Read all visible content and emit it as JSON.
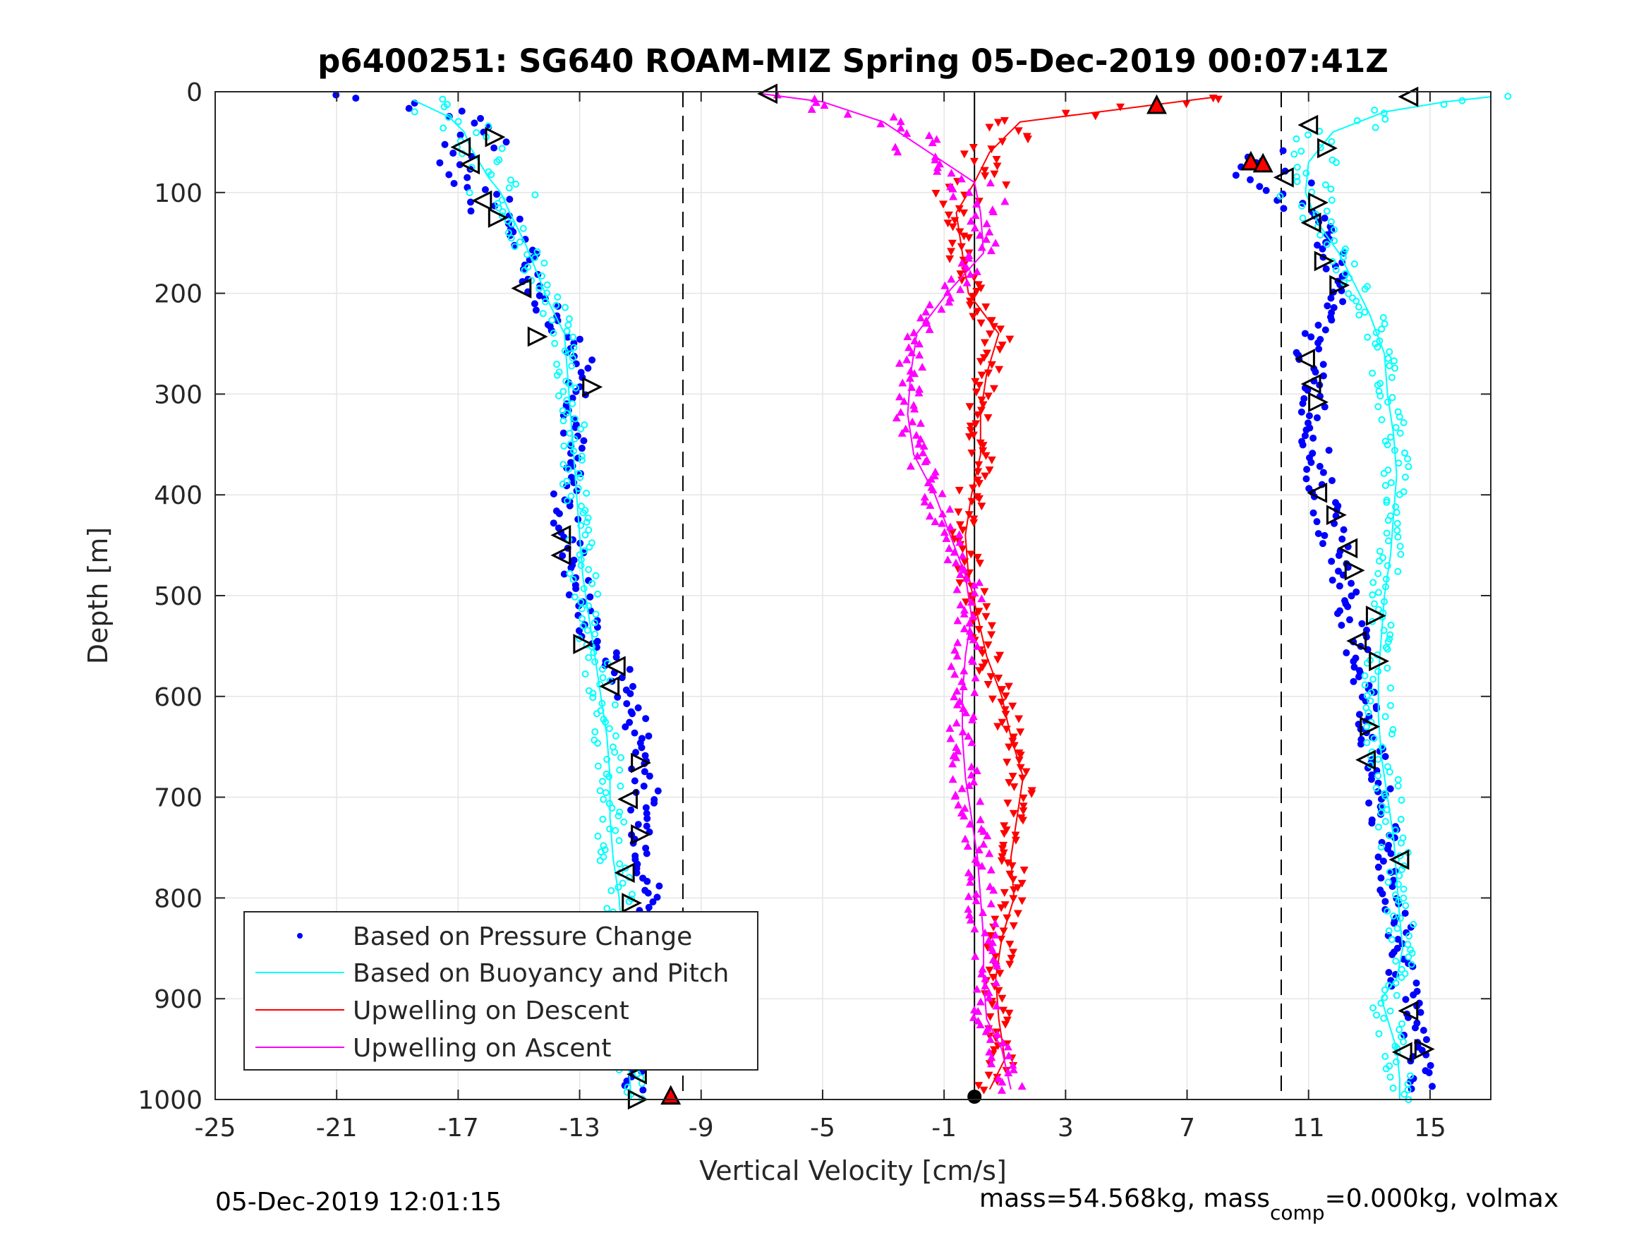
{
  "chart_data": {
    "type": "scatter",
    "title": "p6400251: SG640 ROAM-MIZ Spring 05-Dec-2019 00:07:41Z",
    "xlabel": "Vertical Velocity [cm/s]",
    "ylabel": "Depth [m]",
    "xlim": [
      -25,
      17
    ],
    "ylim": [
      0,
      1000
    ],
    "y_reversed": true,
    "grid": true,
    "xticks": [
      -25,
      -21,
      -17,
      -13,
      -9,
      -5,
      -1,
      3,
      7,
      11,
      15
    ],
    "yticks": [
      0,
      100,
      200,
      300,
      400,
      500,
      600,
      700,
      800,
      900,
      1000
    ],
    "xtick_labels": [
      "-25",
      "-21",
      "-17",
      "-13",
      "-9",
      "-5",
      "-1",
      "3",
      "7",
      "11",
      "15"
    ],
    "ytick_labels": [
      "0",
      "100",
      "200",
      "300",
      "400",
      "500",
      "600",
      "700",
      "800",
      "900",
      "1000"
    ],
    "reference_lines": [
      {
        "style": "dashed",
        "x": -9.6
      },
      {
        "style": "dashed",
        "x": 10.1
      },
      {
        "style": "solid",
        "x": 0
      }
    ],
    "legend": {
      "position": "bottom-left",
      "entries": [
        {
          "label": "Based on Pressure Change",
          "color": "#0000ff",
          "marker": "dot"
        },
        {
          "label": "Based on Buoyancy and Pitch",
          "color": "#00ffff",
          "marker": "line"
        },
        {
          "label": "Upwelling on Descent",
          "color": "#ff0000",
          "marker": "line"
        },
        {
          "label": "Upwelling on Ascent",
          "color": "#ff00ff",
          "marker": "line"
        }
      ]
    },
    "series": [
      {
        "role": "pressure_descent",
        "color": "#0000ff",
        "depth": [
          3,
          10,
          20,
          30,
          45,
          60,
          75,
          90,
          110,
          130,
          160,
          200,
          230,
          250,
          270,
          300,
          340,
          380,
          420,
          460,
          500,
          540,
          570,
          600,
          640,
          680,
          720,
          760,
          800,
          850,
          900,
          950,
          990
        ],
        "values": [
          -21,
          -18.5,
          -17,
          -16.5,
          -16.2,
          -17,
          -16.8,
          -16.2,
          -15.8,
          -15.3,
          -14.8,
          -14.3,
          -13.8,
          -13.2,
          -12.8,
          -13,
          -13.2,
          -13.4,
          -13.5,
          -13.2,
          -13,
          -12.6,
          -11.8,
          -11.4,
          -11.0,
          -10.8,
          -10.9,
          -10.8,
          -10.7,
          -10.6,
          -10.8,
          -11.0,
          -11.1
        ]
      },
      {
        "role": "buoyancy_descent",
        "color": "#00ffff",
        "depth": [
          8,
          15,
          25,
          40,
          55,
          70,
          85,
          100,
          120,
          150,
          180,
          210,
          240,
          280,
          320,
          360,
          400,
          440,
          480,
          520,
          560,
          600,
          640,
          680,
          720,
          760,
          800,
          840,
          880,
          920,
          960,
          1000
        ],
        "values": [
          -18.5,
          -18,
          -17.3,
          -16.8,
          -16.6,
          -16.3,
          -16.0,
          -15.6,
          -15.3,
          -14.8,
          -14.4,
          -14.0,
          -13.5,
          -13.4,
          -13.3,
          -13.2,
          -13.1,
          -13.0,
          -12.9,
          -12.7,
          -12.5,
          -12.3,
          -12.1,
          -12.0,
          -12.0,
          -11.9,
          -11.7,
          -11.6,
          -11.5,
          -11.5,
          -11.4,
          -11.3
        ]
      },
      {
        "role": "pressure_ascent",
        "color": "#0000ff",
        "depth": [
          990,
          950,
          900,
          860,
          820,
          780,
          740,
          700,
          660,
          620,
          580,
          540,
          500,
          460,
          420,
          380,
          340,
          300,
          260,
          220,
          190,
          160,
          130,
          100,
          80,
          70,
          60
        ],
        "values": [
          14.8,
          14.6,
          14.2,
          14.0,
          13.9,
          13.7,
          13.5,
          13.3,
          13.1,
          13.0,
          12.8,
          12.5,
          12.3,
          12.0,
          11.6,
          11.3,
          11.2,
          11.2,
          11.0,
          11.5,
          12.0,
          11.8,
          11.2,
          10.5,
          9.5,
          9.0,
          10.2
        ]
      },
      {
        "role": "buoyancy_ascent",
        "color": "#00ffff",
        "depth": [
          1000,
          980,
          950,
          920,
          900,
          880,
          850,
          820,
          780,
          740,
          700,
          660,
          620,
          580,
          540,
          500,
          460,
          420,
          380,
          340,
          300,
          260,
          220,
          190,
          160,
          130,
          100,
          70,
          40,
          20,
          10,
          5
        ],
        "values": [
          14.0,
          14.0,
          13.9,
          13.6,
          13.4,
          13.9,
          14.1,
          14.0,
          13.9,
          13.8,
          13.6,
          13.4,
          13.3,
          13.3,
          13.4,
          13.5,
          13.7,
          13.8,
          13.9,
          13.8,
          13.6,
          13.5,
          13.0,
          12.5,
          12.0,
          11.3,
          10.9,
          11.0,
          11.8,
          13.5,
          15.5,
          17
        ]
      },
      {
        "role": "upwelling_descent",
        "color": "#ff0000",
        "depth": [
          5,
          30,
          60,
          90,
          120,
          160,
          200,
          240,
          280,
          320,
          360,
          400,
          440,
          480,
          520,
          560,
          600,
          640,
          680,
          720,
          760,
          800,
          840,
          880,
          920,
          960,
          990
        ],
        "values": [
          8,
          1.5,
          0.5,
          0,
          -0.6,
          -0.4,
          -0.2,
          0.8,
          0.4,
          0.2,
          0.2,
          -0.1,
          -0.3,
          -0.2,
          0.1,
          0.4,
          0.9,
          1.2,
          1.6,
          1.4,
          1.2,
          1.3,
          0.9,
          0.7,
          0.8,
          1.0,
          0.5
        ]
      },
      {
        "role": "upwelling_ascent",
        "color": "#ff00ff",
        "depth": [
          990,
          950,
          920,
          880,
          840,
          800,
          760,
          720,
          680,
          640,
          600,
          560,
          520,
          480,
          440,
          400,
          360,
          320,
          280,
          240,
          200,
          160,
          120,
          90,
          60,
          30,
          10,
          2
        ],
        "values": [
          1.2,
          0.9,
          0.4,
          0.3,
          0.3,
          0.2,
          0.1,
          -0.1,
          -0.3,
          -0.4,
          -0.4,
          -0.3,
          -0.1,
          -0.3,
          -0.8,
          -1.3,
          -2.0,
          -2.2,
          -2.1,
          -1.9,
          -0.9,
          0.3,
          0.2,
          0,
          -1.5,
          -3.0,
          -5.0,
          -7.0
        ]
      }
    ],
    "markers": {
      "descent_triangles_left": [
        [
          -16.9,
          55
        ],
        [
          -16.6,
          72
        ],
        [
          -16.2,
          108
        ],
        [
          -14.9,
          195
        ],
        [
          -13.6,
          440
        ],
        [
          -13.6,
          460
        ],
        [
          -11.8,
          570
        ],
        [
          -12.0,
          590
        ],
        [
          -11.4,
          702
        ],
        [
          -11.5,
          775
        ],
        [
          -11.1,
          975
        ],
        [
          -6.8,
          2
        ]
      ],
      "descent_triangles_right": [
        [
          -15.8,
          45
        ],
        [
          -15.7,
          125
        ],
        [
          -14.4,
          243
        ],
        [
          -12.6,
          293
        ],
        [
          -12.9,
          548
        ],
        [
          -11.0,
          666
        ],
        [
          -11.0,
          737
        ],
        [
          -11.3,
          805
        ],
        [
          -10.8,
          945
        ],
        [
          -11.1,
          1000
        ]
      ],
      "ascent_triangles_left": [
        [
          14.3,
          5
        ],
        [
          11.0,
          33
        ],
        [
          10.2,
          85
        ],
        [
          11.1,
          130
        ],
        [
          10.9,
          265
        ],
        [
          11.1,
          290
        ],
        [
          11.3,
          398
        ],
        [
          12.3,
          453
        ],
        [
          12.6,
          545
        ],
        [
          12.9,
          663
        ],
        [
          14.0,
          762
        ],
        [
          14.3,
          912
        ],
        [
          14.1,
          953
        ]
      ],
      "ascent_triangles_right": [
        [
          11.6,
          56
        ],
        [
          11.3,
          110
        ],
        [
          11.5,
          168
        ],
        [
          12.0,
          192
        ],
        [
          11.3,
          308
        ],
        [
          11.9,
          420
        ],
        [
          12.5,
          475
        ],
        [
          13.2,
          520
        ],
        [
          13.3,
          565
        ],
        [
          13.0,
          630
        ],
        [
          14.8,
          950
        ]
      ],
      "red_up_triangles": [
        [
          6.0,
          14
        ],
        [
          9.1,
          70
        ],
        [
          9.5,
          72
        ],
        [
          -10.0,
          997
        ]
      ],
      "black_dots": [
        [
          0,
          1000
        ]
      ]
    }
  },
  "footer": {
    "date_stamp": "05-Dec-2019 12:01:15",
    "mass_text_1": "mass=54.568kg, mass",
    "mass_sub": "comp",
    "mass_text_2": "=0.000kg, volmax"
  }
}
